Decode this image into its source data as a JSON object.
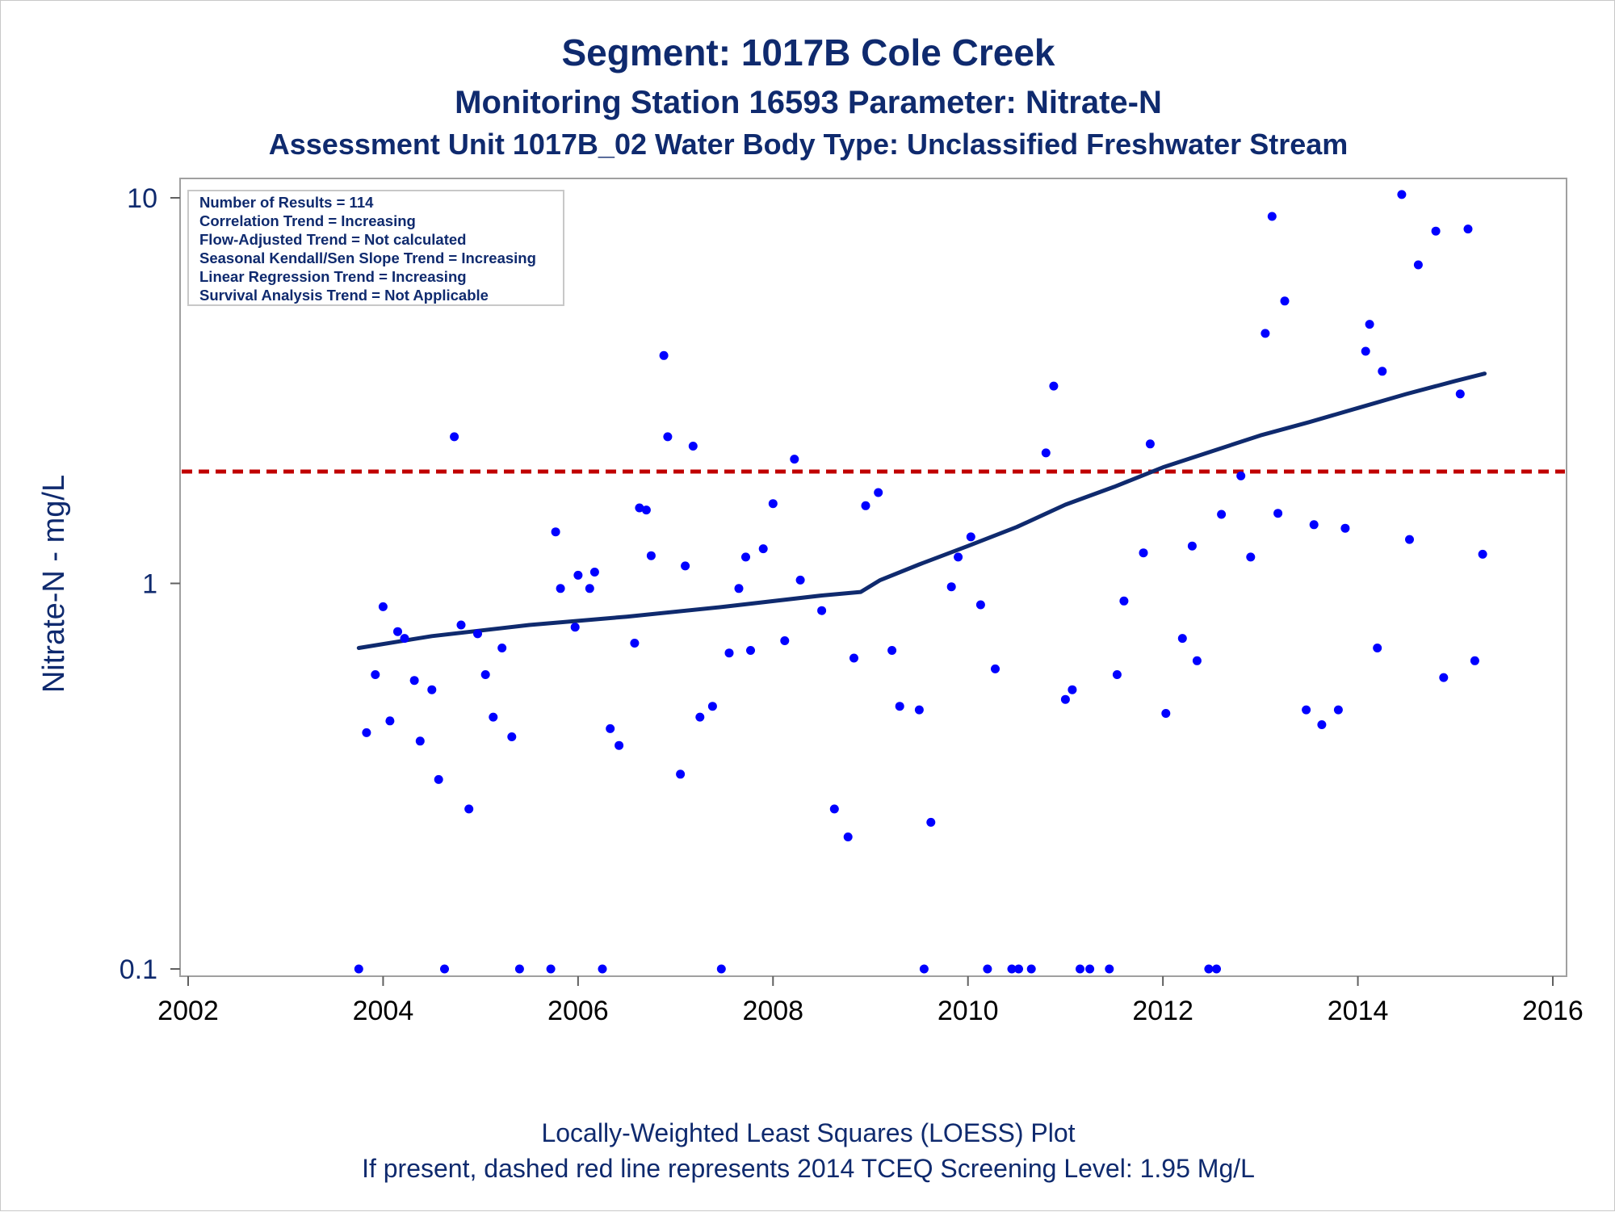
{
  "colors": {
    "title": "#0f2a6e",
    "points": "#0000ff",
    "loess": "#0f2a6e",
    "screening": "#c00000",
    "frame": "#a0a0a0"
  },
  "chart_data": {
    "type": "scatter",
    "title": "Segment: 1017B  Cole Creek",
    "subtitle": "Monitoring Station 16593 Parameter: Nitrate-N",
    "subtitle2": "Assessment Unit 1017B_02   Water Body Type: Unclassified Freshwater Stream",
    "xlabel": "",
    "ylabel": "Nitrate-N - mg/L",
    "yscale": "log",
    "xlim": [
      2002,
      2016
    ],
    "ylim": [
      0.1,
      10
    ],
    "x_ticks": [
      "2002",
      "2004",
      "2006",
      "2008",
      "2010",
      "2012",
      "2014",
      "2016"
    ],
    "x_tick_values": [
      2002,
      2004,
      2006,
      2008,
      2010,
      2012,
      2014,
      2016
    ],
    "y_ticks": [
      "0.1",
      "1",
      "10"
    ],
    "y_tick_values": [
      0.1,
      1,
      10
    ],
    "stats": [
      "Number of Results = 114",
      "Correlation Trend = Increasing",
      "Flow-Adjusted Trend = Not calculated",
      "Seasonal Kendall/Sen Slope Trend = Increasing",
      "Linear Regression Trend = Increasing",
      "Survival Analysis Trend = Not Applicable"
    ],
    "screening_level": 1.95,
    "footnote1": "Locally-Weighted Least Squares (LOESS) Plot",
    "footnote2": "If present, dashed red line represents 2014 TCEQ Screening Level: 1.95 Mg/L",
    "points": [
      {
        "x": 2003.75,
        "y": 0.1
      },
      {
        "x": 2003.83,
        "y": 0.41
      },
      {
        "x": 2003.92,
        "y": 0.58
      },
      {
        "x": 2004.0,
        "y": 0.87
      },
      {
        "x": 2004.07,
        "y": 0.44
      },
      {
        "x": 2004.15,
        "y": 0.75
      },
      {
        "x": 2004.22,
        "y": 0.72
      },
      {
        "x": 2004.32,
        "y": 0.56
      },
      {
        "x": 2004.38,
        "y": 0.39
      },
      {
        "x": 2004.5,
        "y": 0.53
      },
      {
        "x": 2004.57,
        "y": 0.31
      },
      {
        "x": 2004.63,
        "y": 0.1
      },
      {
        "x": 2004.73,
        "y": 2.4
      },
      {
        "x": 2004.8,
        "y": 0.78
      },
      {
        "x": 2004.88,
        "y": 0.26
      },
      {
        "x": 2004.97,
        "y": 0.74
      },
      {
        "x": 2005.05,
        "y": 0.58
      },
      {
        "x": 2005.13,
        "y": 0.45
      },
      {
        "x": 2005.22,
        "y": 0.68
      },
      {
        "x": 2005.32,
        "y": 0.4
      },
      {
        "x": 2005.4,
        "y": 0.1
      },
      {
        "x": 2005.77,
        "y": 1.36
      },
      {
        "x": 2005.82,
        "y": 0.97
      },
      {
        "x": 2005.72,
        "y": 0.1
      },
      {
        "x": 2005.97,
        "y": 0.77
      },
      {
        "x": 2006.0,
        "y": 1.05
      },
      {
        "x": 2006.12,
        "y": 0.97
      },
      {
        "x": 2006.17,
        "y": 1.07
      },
      {
        "x": 2006.25,
        "y": 0.1
      },
      {
        "x": 2006.33,
        "y": 0.42
      },
      {
        "x": 2006.42,
        "y": 0.38
      },
      {
        "x": 2006.58,
        "y": 0.7
      },
      {
        "x": 2006.63,
        "y": 1.57
      },
      {
        "x": 2006.7,
        "y": 1.55
      },
      {
        "x": 2006.75,
        "y": 1.18
      },
      {
        "x": 2006.88,
        "y": 3.9
      },
      {
        "x": 2006.92,
        "y": 2.4
      },
      {
        "x": 2007.05,
        "y": 0.32
      },
      {
        "x": 2007.1,
        "y": 1.11
      },
      {
        "x": 2007.18,
        "y": 2.27
      },
      {
        "x": 2007.25,
        "y": 0.45
      },
      {
        "x": 2007.38,
        "y": 0.48
      },
      {
        "x": 2007.47,
        "y": 0.1
      },
      {
        "x": 2007.55,
        "y": 0.66
      },
      {
        "x": 2007.65,
        "y": 0.97
      },
      {
        "x": 2007.72,
        "y": 1.17
      },
      {
        "x": 2007.77,
        "y": 0.67
      },
      {
        "x": 2007.9,
        "y": 1.23
      },
      {
        "x": 2008.0,
        "y": 1.61
      },
      {
        "x": 2008.12,
        "y": 0.71
      },
      {
        "x": 2008.22,
        "y": 2.1
      },
      {
        "x": 2008.28,
        "y": 1.02
      },
      {
        "x": 2008.5,
        "y": 0.85
      },
      {
        "x": 2008.63,
        "y": 0.26
      },
      {
        "x": 2008.77,
        "y": 0.22
      },
      {
        "x": 2008.83,
        "y": 0.64
      },
      {
        "x": 2008.95,
        "y": 1.59
      },
      {
        "x": 2009.08,
        "y": 1.72
      },
      {
        "x": 2009.22,
        "y": 0.67
      },
      {
        "x": 2009.3,
        "y": 0.48
      },
      {
        "x": 2009.5,
        "y": 0.47
      },
      {
        "x": 2009.55,
        "y": 0.1
      },
      {
        "x": 2009.62,
        "y": 0.24
      },
      {
        "x": 2009.83,
        "y": 0.98
      },
      {
        "x": 2009.9,
        "y": 1.17
      },
      {
        "x": 2010.03,
        "y": 1.32
      },
      {
        "x": 2010.13,
        "y": 0.88
      },
      {
        "x": 2010.2,
        "y": 0.1
      },
      {
        "x": 2010.28,
        "y": 0.6
      },
      {
        "x": 2010.45,
        "y": 0.1
      },
      {
        "x": 2010.52,
        "y": 0.1
      },
      {
        "x": 2010.65,
        "y": 0.1
      },
      {
        "x": 2010.8,
        "y": 2.18
      },
      {
        "x": 2010.88,
        "y": 3.25
      },
      {
        "x": 2011.0,
        "y": 0.5
      },
      {
        "x": 2011.07,
        "y": 0.53
      },
      {
        "x": 2011.15,
        "y": 0.1
      },
      {
        "x": 2011.25,
        "y": 0.1
      },
      {
        "x": 2011.45,
        "y": 0.1
      },
      {
        "x": 2011.53,
        "y": 0.58
      },
      {
        "x": 2011.6,
        "y": 0.9
      },
      {
        "x": 2011.8,
        "y": 1.2
      },
      {
        "x": 2011.87,
        "y": 2.3
      },
      {
        "x": 2012.03,
        "y": 0.46
      },
      {
        "x": 2012.2,
        "y": 0.72
      },
      {
        "x": 2012.3,
        "y": 1.25
      },
      {
        "x": 2012.35,
        "y": 0.63
      },
      {
        "x": 2012.47,
        "y": 0.1
      },
      {
        "x": 2012.55,
        "y": 0.1
      },
      {
        "x": 2012.6,
        "y": 1.51
      },
      {
        "x": 2012.8,
        "y": 1.9
      },
      {
        "x": 2012.9,
        "y": 1.17
      },
      {
        "x": 2013.05,
        "y": 4.45
      },
      {
        "x": 2013.12,
        "y": 8.95
      },
      {
        "x": 2013.18,
        "y": 1.52
      },
      {
        "x": 2013.25,
        "y": 5.4
      },
      {
        "x": 2013.47,
        "y": 0.47
      },
      {
        "x": 2013.55,
        "y": 1.42
      },
      {
        "x": 2013.63,
        "y": 0.43
      },
      {
        "x": 2013.8,
        "y": 0.47
      },
      {
        "x": 2013.87,
        "y": 1.39
      },
      {
        "x": 2014.08,
        "y": 4.0
      },
      {
        "x": 2014.12,
        "y": 4.7
      },
      {
        "x": 2014.2,
        "y": 0.68
      },
      {
        "x": 2014.25,
        "y": 3.55
      },
      {
        "x": 2014.45,
        "y": 10.2
      },
      {
        "x": 2014.53,
        "y": 1.3
      },
      {
        "x": 2014.62,
        "y": 6.7
      },
      {
        "x": 2014.8,
        "y": 8.2
      },
      {
        "x": 2014.88,
        "y": 0.57
      },
      {
        "x": 2015.05,
        "y": 3.1
      },
      {
        "x": 2015.13,
        "y": 8.3
      },
      {
        "x": 2015.2,
        "y": 0.63
      },
      {
        "x": 2015.28,
        "y": 1.19
      }
    ],
    "loess": [
      {
        "x": 2003.75,
        "y": 0.68
      },
      {
        "x": 2004.5,
        "y": 0.73
      },
      {
        "x": 2005.5,
        "y": 0.78
      },
      {
        "x": 2006.5,
        "y": 0.82
      },
      {
        "x": 2007.5,
        "y": 0.87
      },
      {
        "x": 2008.5,
        "y": 0.93
      },
      {
        "x": 2008.9,
        "y": 0.95
      },
      {
        "x": 2009.1,
        "y": 1.02
      },
      {
        "x": 2009.5,
        "y": 1.12
      },
      {
        "x": 2010.0,
        "y": 1.25
      },
      {
        "x": 2010.5,
        "y": 1.4
      },
      {
        "x": 2011.0,
        "y": 1.6
      },
      {
        "x": 2011.5,
        "y": 1.78
      },
      {
        "x": 2012.0,
        "y": 2.0
      },
      {
        "x": 2012.5,
        "y": 2.2
      },
      {
        "x": 2013.0,
        "y": 2.42
      },
      {
        "x": 2013.5,
        "y": 2.62
      },
      {
        "x": 2014.0,
        "y": 2.85
      },
      {
        "x": 2014.5,
        "y": 3.1
      },
      {
        "x": 2015.0,
        "y": 3.35
      },
      {
        "x": 2015.3,
        "y": 3.5
      }
    ]
  }
}
